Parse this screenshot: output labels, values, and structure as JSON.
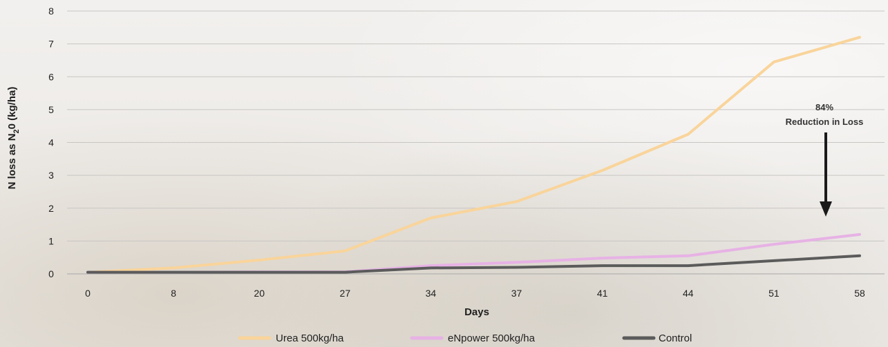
{
  "chart_data": {
    "type": "line",
    "title": "",
    "xlabel": "Days",
    "ylabel_main": "N loss as N",
    "ylabel_subscript": "2",
    "ylabel_suffix": "0 (kg/ha)",
    "categories": [
      "0",
      "8",
      "20",
      "27",
      "34",
      "37",
      "41",
      "44",
      "51",
      "58"
    ],
    "ylim": [
      0,
      8
    ],
    "yticks": [
      "0",
      "1",
      "2",
      "3",
      "4",
      "5",
      "6",
      "7",
      "8"
    ],
    "grid": true,
    "legend_position": "bottom",
    "series": [
      {
        "name": "Urea 500kg/ha",
        "color": "#f9d49a",
        "values": [
          0.05,
          0.18,
          0.42,
          0.7,
          1.7,
          2.2,
          3.15,
          4.25,
          6.45,
          7.2
        ]
      },
      {
        "name": "eNpower 500kg/ha",
        "color": "#e7b2e5",
        "values": [
          0.05,
          0.05,
          0.06,
          0.06,
          0.25,
          0.35,
          0.48,
          0.55,
          0.9,
          1.2
        ]
      },
      {
        "name": "Control",
        "color": "#5b5b5b",
        "values": [
          0.05,
          0.05,
          0.05,
          0.05,
          0.18,
          0.2,
          0.25,
          0.25,
          0.4,
          0.55
        ]
      }
    ],
    "annotation": {
      "line1": "84%",
      "line2": "Reduction in Loss"
    }
  }
}
